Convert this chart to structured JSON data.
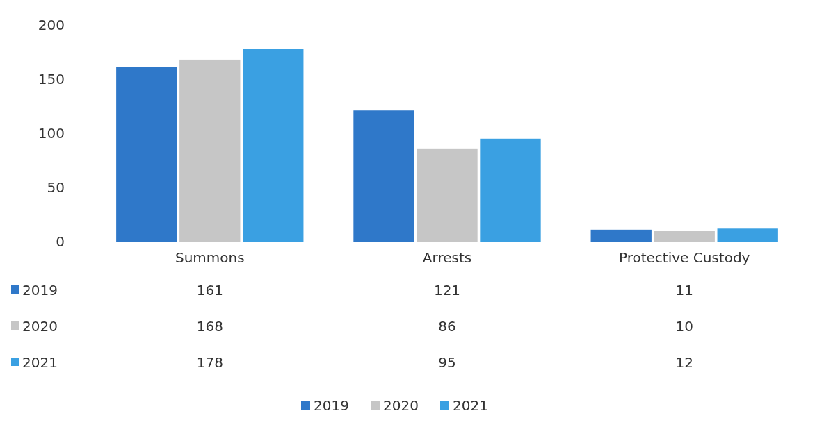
{
  "chart_data": {
    "type": "bar",
    "categories": [
      "Summons",
      "Arrests",
      "Protective Custody"
    ],
    "series": [
      {
        "name": "2019",
        "color": "#2f78c9",
        "values": [
          161,
          121,
          11
        ]
      },
      {
        "name": "2020",
        "color": "#c6c6c6",
        "values": [
          168,
          86,
          10
        ]
      },
      {
        "name": "2021",
        "color": "#3aa0e2",
        "values": [
          178,
          95,
          12
        ]
      }
    ],
    "ylim": [
      0,
      200
    ],
    "yticks": [
      0,
      50,
      100,
      150,
      200
    ],
    "data_labels": true,
    "legend": "bottom"
  }
}
